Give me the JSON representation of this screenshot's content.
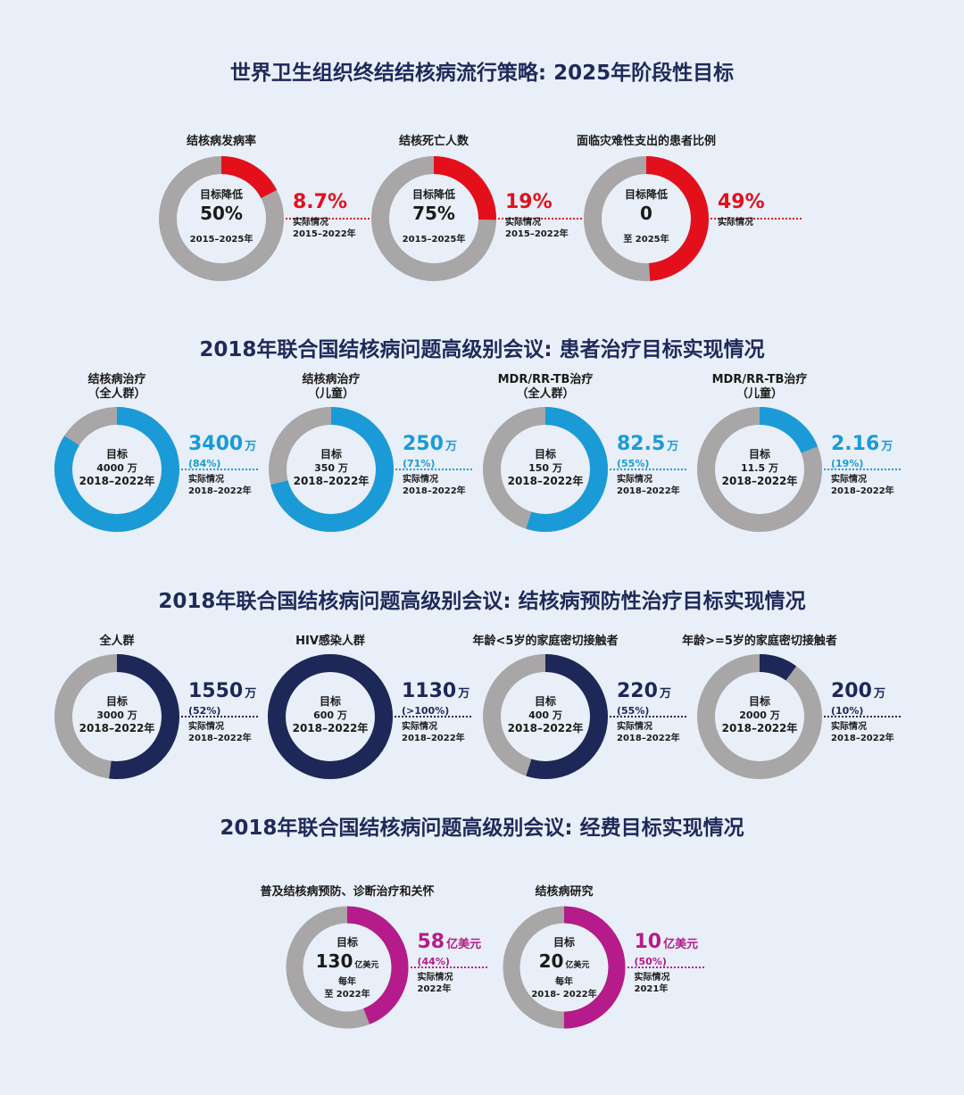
{
  "colors": {
    "gray": "#a8a6a6",
    "red": "#e3101c",
    "blue": "#1a9bd7",
    "navy": "#1d2859",
    "magenta": "#b51b8a"
  },
  "sections": [
    {
      "title": "世界卫生组织终结结核病流行策略: 2025年阶段性目标",
      "color": "#e3101c",
      "charts": [
        {
          "title_lines": [
            "结核病发病率"
          ],
          "center_lines": [
            "目标降低",
            "50%",
            "2015–2025年"
          ],
          "value": "8.7%",
          "value_unit": "",
          "pct": "",
          "desc_lines": [
            "实际情况",
            "2015–2022年"
          ],
          "fraction": 0.174
        },
        {
          "title_lines": [
            "结核死亡人数"
          ],
          "center_lines": [
            "目标降低",
            "75%",
            "2015–2025年"
          ],
          "value": "19%",
          "value_unit": "",
          "pct": "",
          "desc_lines": [
            "实际情况",
            "2015–2022年"
          ],
          "fraction": 0.253
        },
        {
          "title_lines": [
            "面临灾难性支出的患者比例"
          ],
          "center_lines": [
            "目标降低",
            "0",
            "至 2025年"
          ],
          "value": "49%",
          "value_unit": "",
          "pct": "",
          "desc_lines": [
            "实际情况"
          ],
          "fraction": 0.49
        }
      ]
    },
    {
      "title": "2018年联合国结核病问题高级别会议: 患者治疗目标实现情况",
      "color": "#1a9bd7",
      "charts": [
        {
          "title_lines": [
            "结核病治疗",
            "（全人群）"
          ],
          "center_lines": [
            "目标",
            "4000 万",
            "2018–2022年"
          ],
          "value": "3400",
          "value_unit": "万",
          "pct": "(84%)",
          "desc_lines": [
            "实际情况",
            "2018–2022年"
          ],
          "fraction": 0.84
        },
        {
          "title_lines": [
            "结核病治疗",
            "（儿童）"
          ],
          "center_lines": [
            "目标",
            "350 万",
            "2018–2022年"
          ],
          "value": "250",
          "value_unit": "万",
          "pct": "(71%)",
          "desc_lines": [
            "实际情况",
            "2018–2022年"
          ],
          "fraction": 0.71
        },
        {
          "title_lines": [
            "MDR/RR-TB治疗",
            "（全人群）"
          ],
          "center_lines": [
            "目标",
            "150 万",
            "2018–2022年"
          ],
          "value": "82.5",
          "value_unit": "万",
          "pct": "(55%)",
          "desc_lines": [
            "实际情况",
            "2018–2022年"
          ],
          "fraction": 0.55
        },
        {
          "title_lines": [
            "MDR/RR-TB治疗",
            "（儿童）"
          ],
          "center_lines": [
            "目标",
            "11.5 万",
            "2018–2022年"
          ],
          "value": "2.16",
          "value_unit": "万",
          "pct": "(19%)",
          "desc_lines": [
            "实际情况",
            "2018–2022年"
          ],
          "fraction": 0.19
        }
      ]
    },
    {
      "title": "2018年联合国结核病问题高级别会议: 结核病预防性治疗目标实现情况",
      "color": "#1d2859",
      "charts": [
        {
          "title_lines": [
            "全人群"
          ],
          "center_lines": [
            "目标",
            "3000 万",
            "2018–2022年"
          ],
          "value": "1550",
          "value_unit": "万",
          "pct": "(52%)",
          "desc_lines": [
            "实际情况",
            "2018–2022年"
          ],
          "fraction": 0.52
        },
        {
          "title_lines": [
            "HIV感染人群"
          ],
          "center_lines": [
            "目标",
            "600 万",
            "2018–2022年"
          ],
          "value": "1130",
          "value_unit": "万",
          "pct": "(>100%)",
          "desc_lines": [
            "实际情况",
            "2018–2022年"
          ],
          "fraction": 1.0
        },
        {
          "title_lines": [
            "年龄<5岁的家庭密切接触者"
          ],
          "center_lines": [
            "目标",
            "400 万",
            "2018–2022年"
          ],
          "value": "220",
          "value_unit": "万",
          "pct": "(55%)",
          "desc_lines": [
            "实际情况",
            "2018–2022年"
          ],
          "fraction": 0.55
        },
        {
          "title_lines": [
            "年龄>=5岁的家庭密切接触者"
          ],
          "center_lines": [
            "目标",
            "2000 万",
            "2018–2022年"
          ],
          "value": "200",
          "value_unit": "万",
          "pct": "(10%)",
          "desc_lines": [
            "实际情况",
            "2018–2022年"
          ],
          "fraction": 0.1
        }
      ]
    },
    {
      "title": "2018年联合国结核病问题高级别会议: 经费目标实现情况",
      "color": "#b51b8a",
      "charts": [
        {
          "title_lines": [
            "普及结核病预防、诊断治疗和关怀"
          ],
          "center_lines": [
            "目标",
            "130",
            "亿美元",
            "每年",
            "至 2022年"
          ],
          "value": "58",
          "value_unit": "亿美元",
          "pct": "(44%)",
          "desc_lines": [
            "实际情况",
            "2022年"
          ],
          "fraction": 0.44
        },
        {
          "title_lines": [
            "结核病研究"
          ],
          "center_lines": [
            "目标",
            "20",
            "亿美元",
            "每年",
            "2018- 2022年"
          ],
          "value": "10",
          "value_unit": "亿美元",
          "pct": "(50%)",
          "desc_lines": [
            "实际情况",
            "2021年"
          ],
          "fraction": 0.5
        }
      ]
    }
  ]
}
